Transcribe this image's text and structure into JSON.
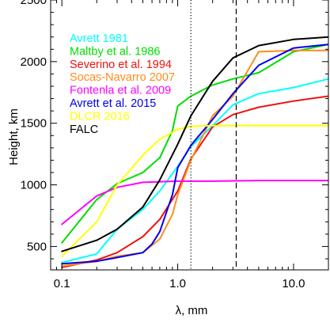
{
  "chart_data": {
    "type": "line",
    "xlabel": "λ, mm",
    "ylabel": "Height, km",
    "xscale": "log",
    "xlim": [
      0.08,
      20
    ],
    "ylim": [
      310,
      2500
    ],
    "xticks": [
      0.1,
      1.0,
      10.0
    ],
    "xtick_labels": [
      "0.1",
      "1.0",
      "10.0"
    ],
    "yticks": [
      500,
      1000,
      1500,
      2000,
      2500
    ],
    "ytick_labels": [
      "500",
      "1000",
      "1500",
      "2000",
      "2500"
    ],
    "grid": false,
    "legend_position": "top-left",
    "vlines": [
      {
        "x": 1.3,
        "style": "dotted"
      },
      {
        "x": 3.2,
        "style": "dashed"
      }
    ],
    "series": [
      {
        "name": "Avrett 1981",
        "color": "#00ffff",
        "x": [
          0.1,
          0.2,
          0.3,
          0.5,
          0.7,
          1.0,
          1.3,
          2.0,
          3.0,
          5.0,
          10.0,
          20.0
        ],
        "y": [
          370,
          440,
          640,
          800,
          950,
          1150,
          1310,
          1480,
          1650,
          1740,
          1790,
          1860
        ]
      },
      {
        "name": "Maltby et al. 1986",
        "color": "#00dd00",
        "x": [
          0.1,
          0.2,
          0.3,
          0.5,
          0.7,
          0.9,
          1.0,
          1.3,
          2.0,
          3.0,
          5.0,
          10.0,
          20.0
        ],
        "y": [
          530,
          880,
          1010,
          1100,
          1220,
          1440,
          1640,
          1720,
          1810,
          1860,
          1910,
          2080,
          2140
        ]
      },
      {
        "name": "Severino et al. 1994",
        "color": "#ee1111",
        "x": [
          0.1,
          0.2,
          0.3,
          0.5,
          0.7,
          1.0,
          1.3,
          2.0,
          3.0,
          5.0,
          10.0,
          20.0
        ],
        "y": [
          330,
          390,
          450,
          580,
          720,
          950,
          1210,
          1470,
          1570,
          1630,
          1680,
          1720
        ]
      },
      {
        "name": "Socas-Navarro 2007",
        "color": "#ff8c1a",
        "x": [
          0.1,
          0.2,
          0.3,
          0.5,
          0.7,
          0.9,
          1.0,
          1.3,
          2.0,
          3.0,
          5.0,
          10.0,
          20.0
        ],
        "y": [
          340,
          380,
          420,
          450,
          560,
          760,
          920,
          1200,
          1560,
          1720,
          2080,
          2090,
          2090
        ]
      },
      {
        "name": "Fontenla et al. 2009",
        "color": "#ff00ff",
        "x": [
          0.1,
          0.2,
          0.3,
          0.5,
          1.0,
          2.0,
          5.0,
          10.0,
          20.0
        ],
        "y": [
          680,
          910,
          980,
          1020,
          1030,
          1030,
          1035,
          1035,
          1035
        ]
      },
      {
        "name": "Avrett et al. 2015",
        "color": "#0000ee",
        "x": [
          0.1,
          0.2,
          0.3,
          0.5,
          0.6,
          0.7,
          0.9,
          1.0,
          1.3,
          2.0,
          3.0,
          5.0,
          10.0,
          20.0
        ],
        "y": [
          360,
          380,
          410,
          450,
          520,
          620,
          920,
          1140,
          1320,
          1530,
          1740,
          1970,
          2110,
          2140
        ]
      },
      {
        "name": "DLCR 2016",
        "color": "#ffff00",
        "x": [
          0.1,
          0.2,
          0.3,
          0.5,
          0.7,
          1.0,
          1.3,
          2.0,
          5.0,
          20.0
        ],
        "y": [
          420,
          700,
          1000,
          1240,
          1370,
          1450,
          1475,
          1480,
          1480,
          1480
        ]
      },
      {
        "name": "FALC",
        "color": "#000000",
        "x": [
          0.1,
          0.2,
          0.3,
          0.5,
          0.7,
          1.0,
          1.3,
          2.0,
          3.0,
          5.0,
          10.0,
          20.0
        ],
        "y": [
          460,
          550,
          640,
          820,
          1040,
          1330,
          1560,
          1840,
          2030,
          2130,
          2180,
          2200
        ]
      }
    ]
  }
}
